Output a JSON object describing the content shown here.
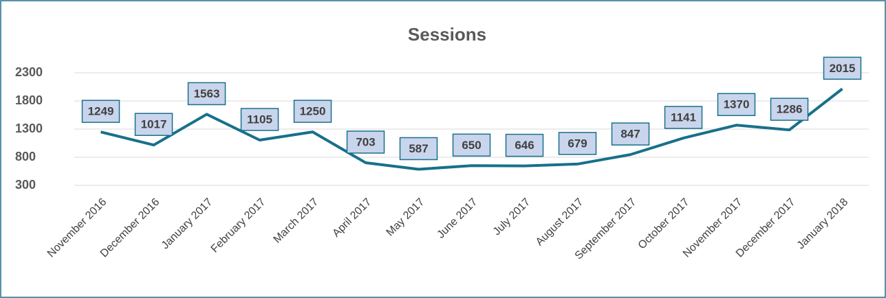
{
  "chart_data": {
    "type": "line",
    "title": "Sessions",
    "categories": [
      "November 2016",
      "December 2016",
      "January 2017",
      "February 2017",
      "March 2017",
      "April 2017",
      "May 2017",
      "June 2017",
      "July 2017",
      "August 2017",
      "September 2017",
      "October 2017",
      "November 2017",
      "December 2017",
      "January 2018"
    ],
    "values": [
      1249,
      1017,
      1563,
      1105,
      1250,
      703,
      587,
      650,
      646,
      679,
      847,
      1141,
      1370,
      1286,
      2015
    ],
    "color": "#17708a",
    "ylim": [
      300,
      2300
    ],
    "yticks": [
      300,
      800,
      1300,
      1800,
      2300
    ],
    "grid": true
  }
}
